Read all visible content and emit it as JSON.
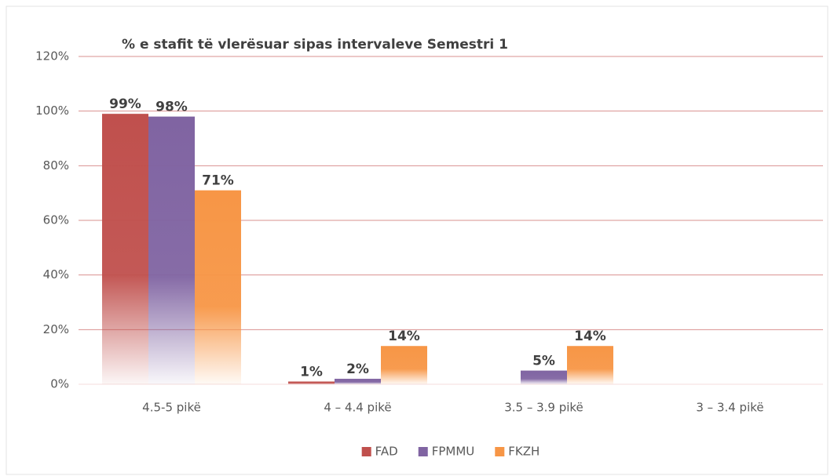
{
  "chart_data": {
    "type": "bar",
    "title": "% e stafit të vlerësuar sipas intervaleve Semestri 1",
    "categories": [
      "4.5-5 pikë",
      "4 – 4.4 pikë",
      "3.5 – 3.9 pikë",
      "3 – 3.4 pikë"
    ],
    "series": [
      {
        "name": "FAD",
        "color": "#c0504d",
        "values": [
          99,
          1,
          null,
          null
        ],
        "value_labels": [
          "99%",
          "1%",
          null,
          null
        ]
      },
      {
        "name": "FPMMU",
        "color": "#8064a2",
        "values": [
          98,
          2,
          5,
          null
        ],
        "value_labels": [
          "98%",
          "2%",
          "5%",
          null
        ]
      },
      {
        "name": "FKZH",
        "color": "#f79646",
        "values": [
          71,
          14,
          14,
          null
        ],
        "value_labels": [
          "71%",
          "14%",
          "14%",
          null
        ]
      }
    ],
    "ylim": [
      0,
      120
    ],
    "yticks": [
      {
        "value": 0,
        "label": "0%"
      },
      {
        "value": 20,
        "label": "20%"
      },
      {
        "value": 40,
        "label": "40%"
      },
      {
        "value": 60,
        "label": "60%"
      },
      {
        "value": 80,
        "label": "80%"
      },
      {
        "value": 100,
        "label": "100%"
      },
      {
        "value": 120,
        "label": "120%"
      }
    ],
    "grid": true,
    "legend": "bottom"
  }
}
